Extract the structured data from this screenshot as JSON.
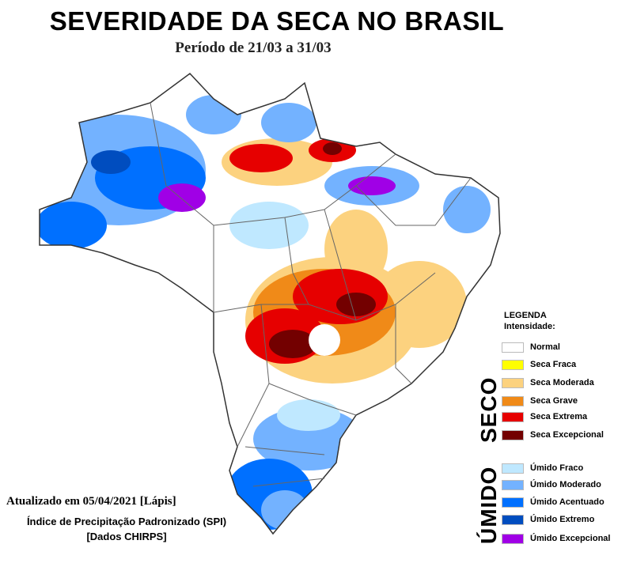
{
  "title": "SEVERIDADE DA SECA NO BRASIL",
  "subtitle": "Período de 21/03 a 31/03",
  "legend": {
    "title_line1": "LEGENDA",
    "title_line2": "Intensidade:",
    "dry_group_label": "SECO",
    "wet_group_label": "ÚMIDO",
    "dry_items": [
      {
        "label": "Normal",
        "color": "#ffffff"
      },
      {
        "label": "Seca Fraca",
        "color": "#ffff00"
      },
      {
        "label": "Seca Moderada",
        "color": "#fcd27f"
      },
      {
        "label": "Seca Grave",
        "color": "#f08a18"
      },
      {
        "label": "Seca Extrema",
        "color": "#e60000"
      },
      {
        "label": "Seca Excepcional",
        "color": "#730000"
      }
    ],
    "wet_items": [
      {
        "label": "Úmido Fraco",
        "color": "#bfe8ff"
      },
      {
        "label": "Úmido Moderado",
        "color": "#73b2ff"
      },
      {
        "label": "Úmido Acentuado",
        "color": "#0070ff"
      },
      {
        "label": "Úmido Extremo",
        "color": "#004dbf"
      },
      {
        "label": "Úmido Excepcional",
        "color": "#a000e6"
      }
    ]
  },
  "footer": {
    "updated": "Atualizado em 05/04/2021 [Lápis]",
    "index": "Índice de Precipitação Padronizado (SPI)",
    "data_source": "[Dados CHIRPS]"
  }
}
